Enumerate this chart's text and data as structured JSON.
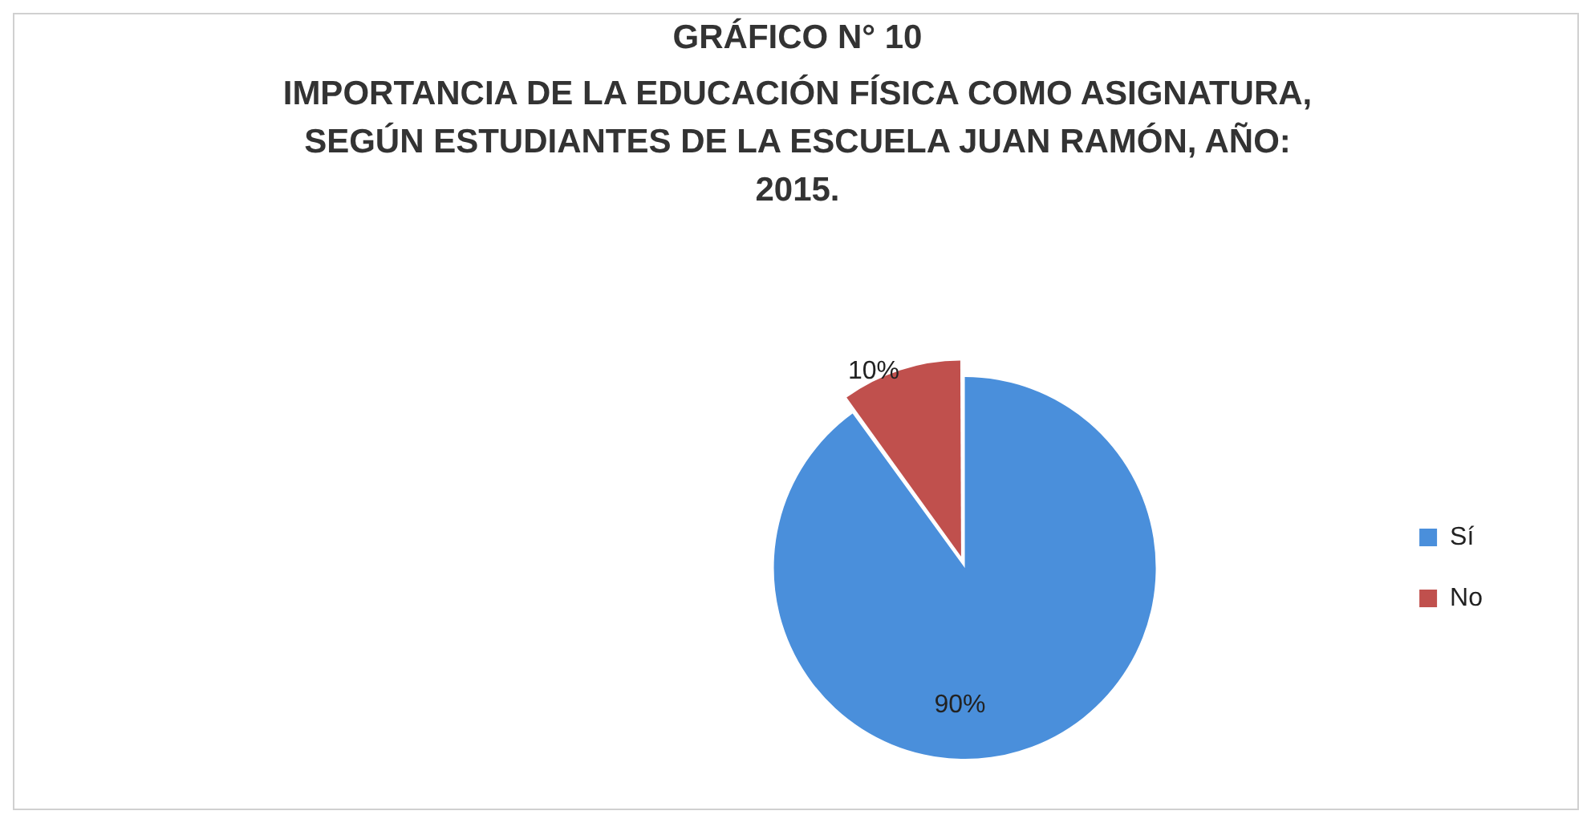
{
  "chart_data": {
    "type": "pie",
    "title": "GRÁFICO N° 10",
    "subtitle": "IMPORTANCIA DE LA EDUCACIÓN FÍSICA COMO ASIGNATURA, SEGÚN ESTUDIANTES  DE LA ESCUELA JUAN RAMÓN, AÑO: 2015.",
    "categories": [
      "Sí",
      "No"
    ],
    "values": [
      90,
      10
    ],
    "colors": [
      "#4a8fdb",
      "#c0504d"
    ],
    "value_labels": [
      "90%",
      "10%"
    ],
    "legend": "right"
  }
}
